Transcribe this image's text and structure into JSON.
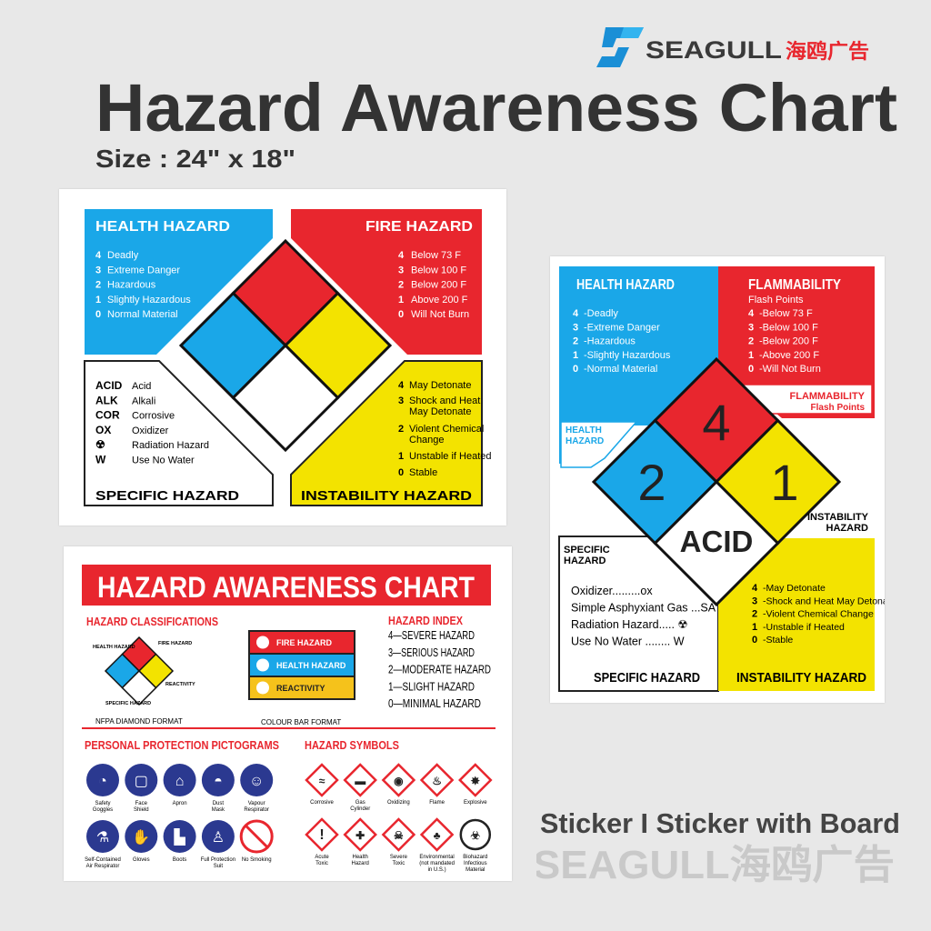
{
  "brand": {
    "name": "SEAGULL",
    "cn": "海鸥广告",
    "logo_color": "#1a8fd6"
  },
  "title": "Hazard Awareness Chart",
  "size_label": "Size : 24\" x 18\"",
  "colors": {
    "blue": "#1aa7e8",
    "red": "#e8262e",
    "yellow": "#f3e300",
    "text": "#333333"
  },
  "chart1": {
    "health": {
      "title": "HEALTH HAZARD",
      "items": [
        {
          "n": "4",
          "t": "Deadly"
        },
        {
          "n": "3",
          "t": "Extreme Danger"
        },
        {
          "n": "2",
          "t": "Hazardous"
        },
        {
          "n": "1",
          "t": "Slightly Hazardous"
        },
        {
          "n": "0",
          "t": "Normal Material"
        }
      ]
    },
    "fire": {
      "title": "FIRE HAZARD",
      "items": [
        {
          "n": "4",
          "t": "Below 73 F"
        },
        {
          "n": "3",
          "t": "Below 100 F"
        },
        {
          "n": "2",
          "t": "Below 200 F"
        },
        {
          "n": "1",
          "t": "Above 200 F"
        },
        {
          "n": "0",
          "t": "Will Not Burn"
        }
      ]
    },
    "specific": {
      "title": "SPECIFIC HAZARD",
      "items": [
        {
          "code": "ACID",
          "t": "Acid"
        },
        {
          "code": "ALK",
          "t": "Alkali"
        },
        {
          "code": "COR",
          "t": "Corrosive"
        },
        {
          "code": "OX",
          "t": "Oxidizer"
        },
        {
          "code": "☢",
          "t": "Radiation Hazard"
        },
        {
          "code": "W",
          "t": "Use No Water"
        }
      ]
    },
    "instability": {
      "title": "INSTABILITY HAZARD",
      "items": [
        {
          "n": "4",
          "l1": "May Detonate",
          "l2": ""
        },
        {
          "n": "3",
          "l1": "Shock and Heat",
          "l2": "May Detonate"
        },
        {
          "n": "2",
          "l1": "Violent Chemical",
          "l2": "Change"
        },
        {
          "n": "1",
          "l1": "Unstable if Heated",
          "l2": ""
        },
        {
          "n": "0",
          "l1": "Stable",
          "l2": ""
        }
      ]
    }
  },
  "chart2": {
    "health": {
      "title": "HEALTH HAZARD",
      "label1": "HEALTH",
      "label2": "HAZARD",
      "items": [
        {
          "n": "4",
          "t": "-Deadly"
        },
        {
          "n": "3",
          "t": "-Extreme Danger"
        },
        {
          "n": "2",
          "t": "-Hazardous"
        },
        {
          "n": "1",
          "t": "-Slightly Hazardous"
        },
        {
          "n": "0",
          "t": "-Normal Material"
        }
      ]
    },
    "flammability": {
      "title": "FLAMMABILITY",
      "subtitle": "Flash Points",
      "box_title": "FLAMMABILITY",
      "box_subtitle": "Flash Points",
      "items": [
        {
          "n": "4",
          "t": "-Below 73  F"
        },
        {
          "n": "3",
          "t": "-Below 100  F"
        },
        {
          "n": "2",
          "t": "-Below 200  F"
        },
        {
          "n": "1",
          "t": "-Above 200  F"
        },
        {
          "n": "0",
          "t": "-Will Not Burn"
        }
      ]
    },
    "diamond": {
      "health": "2",
      "fire": "4",
      "instability": "1",
      "specific": "ACID"
    },
    "instability": {
      "title": "INSTABILITY HAZARD",
      "label1": "INSTABILITY",
      "label2": "HAZARD",
      "items": [
        {
          "n": "4",
          "t": "-May Detonate"
        },
        {
          "n": "3",
          "t": "-Shock and Heat May Detonate"
        },
        {
          "n": "2",
          "t": "-Violent Chemical Change"
        },
        {
          "n": "1",
          "t": "-Unstable if Heated"
        },
        {
          "n": "0",
          "t": "-Stable"
        }
      ]
    },
    "specific": {
      "title": "SPECIFIC HAZARD",
      "label1": "SPECIFIC",
      "label2": "HAZARD",
      "items": [
        "Oxidizer.........ox",
        "Simple Asphyxiant Gas ...SA",
        "Radiation Hazard..... ☢",
        "Use No Water ........ W"
      ]
    }
  },
  "chart3": {
    "banner": "HAZARD AWARENESS CHART",
    "classifications": {
      "title": "HAZARD CLASSIFICATIONS",
      "diamond_labels": {
        "health": "HEALTH HAZARD",
        "fire": "FIRE HAZARD",
        "reactivity": "REACTIVITY",
        "specific": "SPECIFIC HAZARD"
      },
      "diamond_caption": "NFPA DIAMOND FORMAT",
      "bars": [
        "FIRE HAZARD",
        "HEALTH HAZARD",
        "REACTIVITY"
      ],
      "bar_caption": "COLOUR BAR FORMAT"
    },
    "index": {
      "title": "HAZARD INDEX",
      "items": [
        "4—SEVERE HAZARD",
        "3—SERIOUS HAZARD",
        "2—MODERATE HAZARD",
        "1—SLIGHT HAZARD",
        "0—MINIMAL HAZARD"
      ]
    },
    "ppe": {
      "title": "PERSONAL PROTECTION PICTOGRAMS",
      "items": [
        {
          "icon": "goggles-icon",
          "l1": "Safety",
          "l2": "Goggles"
        },
        {
          "icon": "face-shield-icon",
          "l1": "Face",
          "l2": "Shield"
        },
        {
          "icon": "apron-icon",
          "l1": "Apron",
          "l2": ""
        },
        {
          "icon": "dust-mask-icon",
          "l1": "Dust",
          "l2": "Mask"
        },
        {
          "icon": "respirator-icon",
          "l1": "Vapour",
          "l2": "Respirator"
        },
        {
          "icon": "air-respirator-icon",
          "l1": "Self-Contained",
          "l2": "Air Respirator"
        },
        {
          "icon": "gloves-icon",
          "l1": "Gloves",
          "l2": ""
        },
        {
          "icon": "boots-icon",
          "l1": "Boots",
          "l2": ""
        },
        {
          "icon": "protection-suit-icon",
          "l1": "Full Protection",
          "l2": "Suit"
        },
        {
          "icon": "no-smoking-icon",
          "l1": "No Smoking",
          "l2": ""
        }
      ]
    },
    "symbols": {
      "title": "HAZARD SYMBOLS",
      "items": [
        {
          "icon": "corrosive-icon",
          "l1": "Corrosive",
          "l2": "",
          "l3": ""
        },
        {
          "icon": "gas-cylinder-icon",
          "l1": "Gas",
          "l2": "Cylinder",
          "l3": ""
        },
        {
          "icon": "oxidizing-icon",
          "l1": "Oxidizing",
          "l2": "",
          "l3": ""
        },
        {
          "icon": "flame-icon",
          "l1": "Flame",
          "l2": "",
          "l3": ""
        },
        {
          "icon": "explosive-icon",
          "l1": "Explosive",
          "l2": "",
          "l3": ""
        },
        {
          "icon": "acute-toxic-icon",
          "l1": "Acute",
          "l2": "Toxic",
          "l3": ""
        },
        {
          "icon": "health-hazard-icon",
          "l1": "Health",
          "l2": "Hazard",
          "l3": ""
        },
        {
          "icon": "severe-toxic-icon",
          "l1": "Severe",
          "l2": "Toxic",
          "l3": ""
        },
        {
          "icon": "environmental-icon",
          "l1": "Environmental",
          "l2": "(not mandated",
          "l3": "in U.S.)"
        },
        {
          "icon": "biohazard-icon",
          "l1": "Biohazard",
          "l2": "Infectious",
          "l3": "Material"
        }
      ]
    }
  },
  "footer": {
    "options": "Sticker I Sticker with Board",
    "watermark": "SEAGULL海鸥广告"
  }
}
